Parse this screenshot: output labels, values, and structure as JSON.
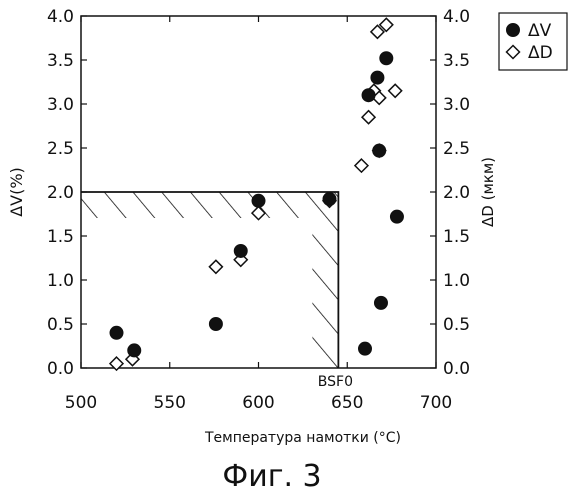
{
  "figure": {
    "caption": "Фиг. 3"
  },
  "chart_data": {
    "type": "scatter",
    "xlabel": "Температура намотки (°C)",
    "ylabel_left": "ΔV(%)",
    "ylabel_right": "ΔD (мкм)",
    "xlim": [
      500,
      700
    ],
    "ylim_left": [
      0,
      4
    ],
    "ylim_right": [
      0,
      4
    ],
    "x_ticks": [
      500,
      550,
      600,
      650,
      700
    ],
    "y_ticks_left": [
      "0.0",
      "0.5",
      "1.0",
      "1.5",
      "2.0",
      "2.5",
      "3.0",
      "3.5",
      "4.0"
    ],
    "y_ticks_right": [
      "0.0",
      "0.5",
      "1.0",
      "1.5",
      "2.0",
      "2.5",
      "3.0",
      "3.5",
      "4.0"
    ],
    "grid": false,
    "legend_position": "top-right",
    "annotation": {
      "label": "BSF0",
      "x": 645
    },
    "hatched_region": {
      "x_range": [
        500,
        645
      ],
      "y_range": [
        0,
        2.0
      ]
    },
    "series": [
      {
        "name": "ΔV",
        "marker": "filled-circle",
        "points": [
          [
            520,
            0.4
          ],
          [
            530,
            0.2
          ],
          [
            576,
            0.5
          ],
          [
            590,
            1.33
          ],
          [
            600,
            1.9
          ],
          [
            640,
            1.92
          ],
          [
            660,
            0.22
          ],
          [
            662,
            3.1
          ],
          [
            667,
            3.3
          ],
          [
            668,
            2.47
          ],
          [
            669,
            0.74
          ],
          [
            672,
            3.52
          ],
          [
            678,
            1.72
          ]
        ]
      },
      {
        "name": "ΔD",
        "marker": "open-diamond",
        "points": [
          [
            520,
            0.05
          ],
          [
            529,
            0.1
          ],
          [
            576,
            1.15
          ],
          [
            590,
            1.23
          ],
          [
            600,
            1.76
          ],
          [
            640,
            1.9
          ],
          [
            658,
            2.3
          ],
          [
            662,
            2.85
          ],
          [
            665,
            3.15
          ],
          [
            667,
            3.82
          ],
          [
            668,
            3.07
          ],
          [
            668,
            2.47
          ],
          [
            672,
            3.9
          ],
          [
            677,
            3.15
          ]
        ]
      }
    ]
  }
}
